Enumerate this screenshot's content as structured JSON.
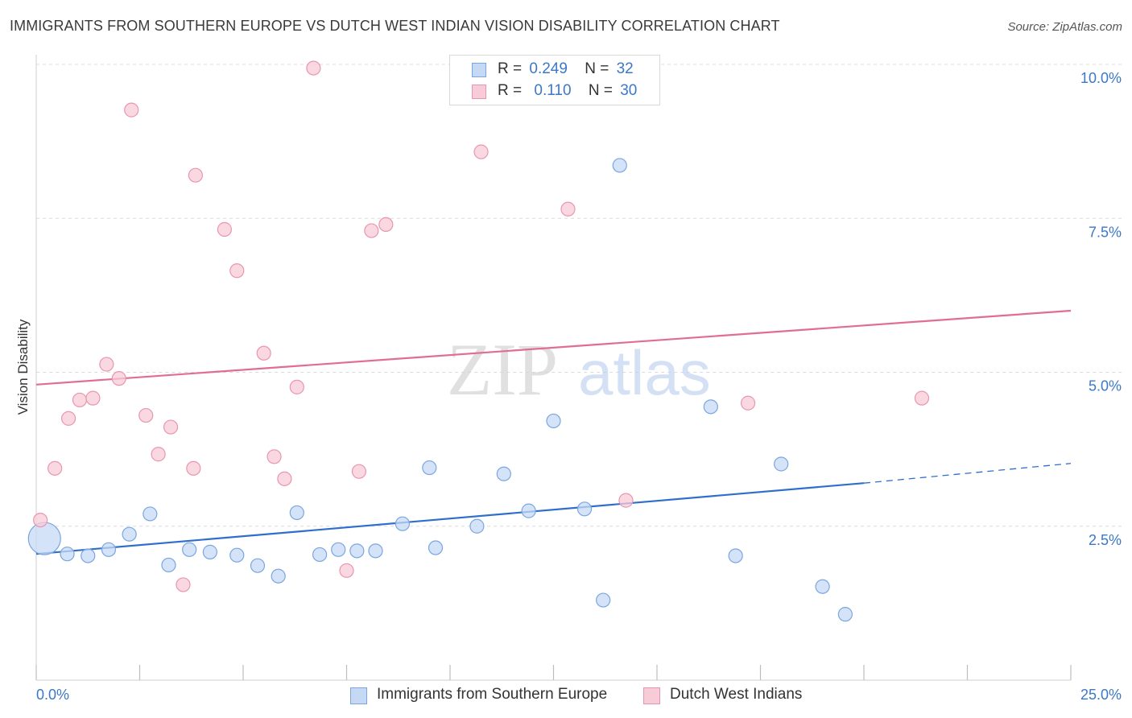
{
  "title": "IMMIGRANTS FROM SOUTHERN EUROPE VS DUTCH WEST INDIAN VISION DISABILITY CORRELATION CHART",
  "source": "Source: ZipAtlas.com",
  "legend": {
    "rows": [
      {
        "r_label": "R =",
        "r_value": "0.249",
        "n_label": "N =",
        "n_value": "32"
      },
      {
        "r_label": "R =",
        "r_value": "0.110",
        "n_label": "N =",
        "n_value": "30"
      }
    ]
  },
  "watermark": {
    "zip": "ZIP",
    "atlas": "atlas"
  },
  "colors": {
    "blue_fill": "#c5d9f5",
    "blue_stroke": "#7aa6df",
    "blue_line": "#2f6fcc",
    "pink_fill": "#f8cbd8",
    "pink_stroke": "#e896b0",
    "pink_line": "#e06d92",
    "tick_text": "#3b78c8",
    "grid": "#dcdcdc"
  },
  "chart_data": {
    "type": "scatter",
    "title": "IMMIGRANTS FROM SOUTHERN EUROPE VS DUTCH WEST INDIAN VISION DISABILITY CORRELATION CHART",
    "xlabel": "",
    "ylabel": "Vision Disability",
    "xlim": [
      0,
      25
    ],
    "ylim": [
      0,
      10
    ],
    "x_tick_labels": [
      "0.0%",
      "25.0%"
    ],
    "y_ticks": [
      {
        "value": 2.5,
        "label": "2.5%"
      },
      {
        "value": 5.0,
        "label": "5.0%"
      },
      {
        "value": 7.5,
        "label": "7.5%"
      },
      {
        "value": 10.0,
        "label": "10.0%"
      }
    ],
    "grid": true,
    "legend_position": "top-center",
    "series": [
      {
        "name": "Immigrants from Southern Europe",
        "color": "blue",
        "r": 0.249,
        "n": 32,
        "trend": {
          "x0": 0,
          "y0": 2.05,
          "x1": 20.0,
          "y1": 3.2,
          "dashed_to_x": 25,
          "dashed_to_y": 3.52
        },
        "points": [
          {
            "x": 0.2,
            "y": 2.3,
            "big": true
          },
          {
            "x": 0.75,
            "y": 2.05
          },
          {
            "x": 1.25,
            "y": 2.02
          },
          {
            "x": 1.75,
            "y": 2.12
          },
          {
            "x": 2.25,
            "y": 2.37
          },
          {
            "x": 2.75,
            "y": 2.7
          },
          {
            "x": 3.2,
            "y": 1.87
          },
          {
            "x": 3.7,
            "y": 2.12
          },
          {
            "x": 4.2,
            "y": 2.08
          },
          {
            "x": 4.85,
            "y": 2.03
          },
          {
            "x": 5.35,
            "y": 1.86
          },
          {
            "x": 5.85,
            "y": 1.69
          },
          {
            "x": 6.3,
            "y": 2.72
          },
          {
            "x": 6.85,
            "y": 2.04
          },
          {
            "x": 7.3,
            "y": 2.12
          },
          {
            "x": 7.75,
            "y": 2.1
          },
          {
            "x": 8.2,
            "y": 2.1
          },
          {
            "x": 8.85,
            "y": 2.54
          },
          {
            "x": 9.5,
            "y": 3.45
          },
          {
            "x": 9.65,
            "y": 2.15
          },
          {
            "x": 10.65,
            "y": 2.5
          },
          {
            "x": 11.3,
            "y": 3.35
          },
          {
            "x": 11.9,
            "y": 2.75
          },
          {
            "x": 12.5,
            "y": 4.21
          },
          {
            "x": 13.25,
            "y": 2.78
          },
          {
            "x": 13.7,
            "y": 1.3
          },
          {
            "x": 14.1,
            "y": 8.36
          },
          {
            "x": 16.3,
            "y": 4.44
          },
          {
            "x": 16.9,
            "y": 2.02
          },
          {
            "x": 18.0,
            "y": 3.51
          },
          {
            "x": 19.0,
            "y": 1.52
          },
          {
            "x": 19.55,
            "y": 1.07
          }
        ]
      },
      {
        "name": "Dutch West Indians",
        "color": "pink",
        "r": 0.11,
        "n": 30,
        "trend": {
          "x0": 0,
          "y0": 4.8,
          "x1": 25,
          "y1": 6.0
        },
        "points": [
          {
            "x": 0.1,
            "y": 2.6
          },
          {
            "x": 0.45,
            "y": 3.44
          },
          {
            "x": 0.78,
            "y": 4.25
          },
          {
            "x": 1.05,
            "y": 4.55
          },
          {
            "x": 1.37,
            "y": 4.58
          },
          {
            "x": 1.7,
            "y": 5.13
          },
          {
            "x": 2.0,
            "y": 4.9
          },
          {
            "x": 2.3,
            "y": 9.26
          },
          {
            "x": 2.65,
            "y": 4.3
          },
          {
            "x": 2.95,
            "y": 3.67
          },
          {
            "x": 3.25,
            "y": 4.11
          },
          {
            "x": 3.55,
            "y": 1.55
          },
          {
            "x": 3.8,
            "y": 3.44
          },
          {
            "x": 3.85,
            "y": 8.2
          },
          {
            "x": 4.55,
            "y": 7.32
          },
          {
            "x": 4.85,
            "y": 6.65
          },
          {
            "x": 5.5,
            "y": 5.31
          },
          {
            "x": 5.75,
            "y": 3.63
          },
          {
            "x": 6.0,
            "y": 3.27
          },
          {
            "x": 6.3,
            "y": 4.76
          },
          {
            "x": 6.7,
            "y": 9.94
          },
          {
            "x": 7.5,
            "y": 1.78
          },
          {
            "x": 7.8,
            "y": 3.39
          },
          {
            "x": 8.1,
            "y": 7.3
          },
          {
            "x": 8.45,
            "y": 7.4
          },
          {
            "x": 10.75,
            "y": 8.58
          },
          {
            "x": 12.85,
            "y": 7.65
          },
          {
            "x": 14.25,
            "y": 2.92
          },
          {
            "x": 17.2,
            "y": 4.5
          },
          {
            "x": 21.4,
            "y": 4.58
          }
        ]
      }
    ]
  }
}
